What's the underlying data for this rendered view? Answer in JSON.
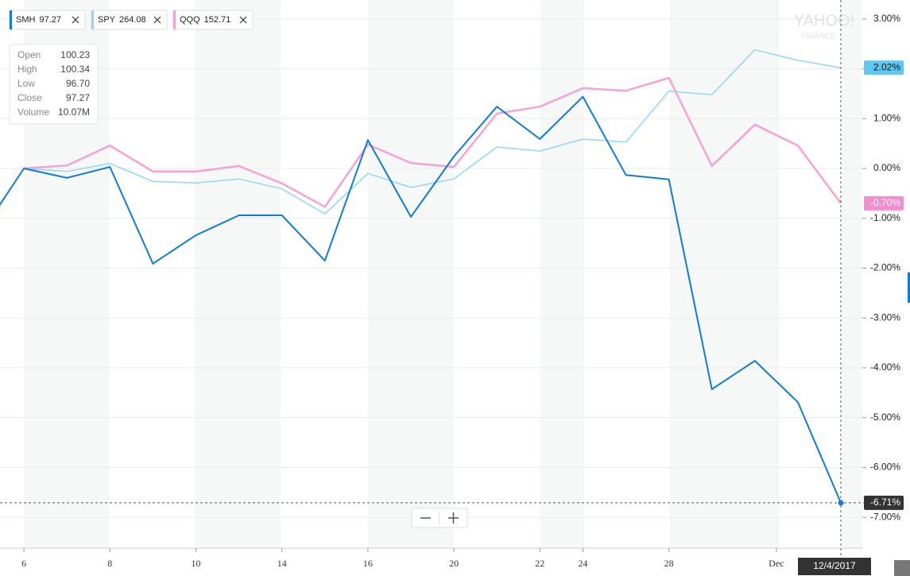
{
  "chart_data": {
    "type": "line",
    "categories": [
      null,
      "6",
      null,
      "8",
      null,
      "10",
      null,
      "14",
      null,
      "16",
      null,
      "20",
      null,
      "22",
      "24",
      null,
      "28",
      null,
      null,
      "Dec",
      null
    ],
    "series": [
      {
        "name": "SMH",
        "price": 97.27,
        "color": "#0f7bde",
        "end_label": "-6.71%",
        "values": [
          -1.3,
          0,
          -0.19,
          0.03,
          -1.91,
          -1.34,
          -0.94,
          -0.94,
          -1.85,
          0.57,
          -0.97,
          0.24,
          1.24,
          0.59,
          1.44,
          -0.13,
          -0.22,
          -4.43,
          -3.86,
          -4.69,
          -6.71
        ]
      },
      {
        "name": "SPY",
        "price": 264.08,
        "color": "#8fd7f5",
        "end_label": "2.02%",
        "values": [
          null,
          0,
          -0.06,
          0.1,
          -0.26,
          -0.29,
          -0.21,
          -0.41,
          -0.91,
          -0.1,
          -0.38,
          -0.21,
          0.43,
          0.35,
          0.59,
          0.53,
          1.55,
          1.48,
          2.38,
          2.17,
          2.02
        ]
      },
      {
        "name": "QQQ",
        "price": 152.71,
        "color": "#f7a1d4",
        "end_label": "-0.70%",
        "values": [
          null,
          0,
          0.06,
          0.46,
          -0.06,
          -0.06,
          0.05,
          -0.3,
          -0.77,
          0.48,
          0.11,
          0.03,
          1.1,
          1.24,
          1.61,
          1.56,
          1.82,
          0.05,
          0.88,
          0.46,
          -0.7
        ]
      }
    ],
    "ylim": [
      -7.62,
      3.38
    ],
    "yticks": [
      {
        "value": 3,
        "label": "3.00%"
      },
      {
        "value": 2,
        "label": "2.00%"
      },
      {
        "value": 1,
        "label": "1.00%"
      },
      {
        "value": 0,
        "label": "0.00%"
      },
      {
        "value": -1,
        "label": "-1.00%"
      },
      {
        "value": -2,
        "label": "-2.00%"
      },
      {
        "value": -3,
        "label": "-3.00%"
      },
      {
        "value": -4,
        "label": "-4.00%"
      },
      {
        "value": -5,
        "label": "-5.00%"
      },
      {
        "value": -6,
        "label": "-6.00%"
      },
      {
        "value": -7,
        "label": "-7.00%"
      }
    ],
    "grid": true,
    "tooltip": [
      [
        "Open",
        "100.23"
      ],
      [
        "High",
        "100.34"
      ],
      [
        "Low",
        "96.70"
      ],
      [
        "Close",
        "97.27"
      ],
      [
        "Volume",
        "10.07M"
      ]
    ],
    "date": "12/4/2017",
    "logo": [
      "YAHOO!",
      "FINANCE"
    ]
  }
}
